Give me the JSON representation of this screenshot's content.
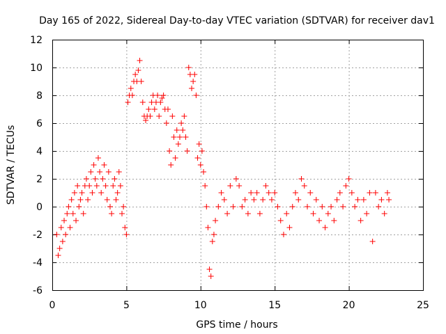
{
  "chart_data": {
    "type": "scatter",
    "title": "Day 165 of 2022, Sidereal Day-to-day VTEC variation (SDTVAR) for receiver dav1",
    "xlabel": "GPS time / hours",
    "ylabel": "SDTVAR / TECUs",
    "xlim": [
      0,
      25
    ],
    "ylim": [
      -6,
      12
    ],
    "xticks": [
      "0",
      "5",
      "10",
      "15",
      "20",
      "25"
    ],
    "yticks": [
      "-6",
      "-4",
      "-2",
      "0",
      "2",
      "4",
      "6",
      "8",
      "10",
      "12"
    ],
    "grid": true,
    "marker": "+",
    "color": "#ff0000",
    "series": [
      {
        "name": "dav1",
        "x": [
          0.3,
          0.4,
          0.5,
          0.6,
          0.7,
          0.8,
          0.9,
          1.0,
          1.1,
          1.2,
          1.3,
          1.4,
          1.5,
          1.6,
          1.7,
          1.8,
          1.9,
          2.0,
          2.1,
          2.2,
          2.3,
          2.4,
          2.5,
          2.6,
          2.7,
          2.8,
          2.9,
          3.0,
          3.1,
          3.2,
          3.3,
          3.4,
          3.5,
          3.6,
          3.7,
          3.8,
          3.9,
          4.0,
          4.1,
          4.2,
          4.3,
          4.4,
          4.5,
          4.6,
          4.7,
          4.8,
          4.9,
          5.0,
          5.1,
          5.2,
          5.3,
          5.4,
          5.5,
          5.6,
          5.7,
          5.8,
          5.9,
          6.0,
          6.1,
          6.2,
          6.3,
          6.4,
          6.5,
          6.6,
          6.7,
          6.8,
          6.9,
          7.0,
          7.1,
          7.2,
          7.3,
          7.4,
          7.5,
          7.6,
          7.7,
          7.8,
          7.9,
          8.0,
          8.1,
          8.2,
          8.3,
          8.4,
          8.5,
          8.6,
          8.7,
          8.8,
          8.9,
          9.0,
          9.1,
          9.2,
          9.3,
          9.4,
          9.5,
          9.6,
          9.7,
          9.8,
          9.9,
          10.0,
          10.1,
          10.2,
          10.3,
          10.4,
          10.5,
          10.6,
          10.7,
          10.8,
          10.9,
          11.0,
          11.2,
          11.4,
          11.6,
          11.8,
          12.0,
          12.2,
          12.4,
          12.6,
          12.8,
          13.0,
          13.2,
          13.4,
          13.6,
          13.8,
          14.0,
          14.2,
          14.4,
          14.6,
          14.8,
          15.0,
          15.2,
          15.4,
          15.6,
          15.8,
          16.0,
          16.2,
          16.4,
          16.6,
          16.8,
          17.0,
          17.2,
          17.4,
          17.6,
          17.8,
          18.0,
          18.2,
          18.4,
          18.6,
          18.8,
          19.0,
          19.2,
          19.4,
          19.6,
          19.8,
          20.0,
          20.2,
          20.4,
          20.6,
          20.8,
          21.0,
          21.2,
          21.4,
          21.6,
          21.8,
          22.0,
          22.2,
          22.4,
          22.6,
          22.7
        ],
        "y": [
          -2.0,
          -3.5,
          -3.0,
          -1.5,
          -2.5,
          -1.0,
          -2.0,
          -0.5,
          0.0,
          -1.5,
          0.5,
          -0.5,
          1.0,
          -1.0,
          1.5,
          0.0,
          0.5,
          1.0,
          -0.5,
          1.5,
          2.0,
          0.5,
          1.5,
          2.5,
          1.0,
          3.0,
          2.0,
          1.5,
          3.5,
          2.5,
          1.0,
          2.0,
          3.0,
          1.5,
          0.5,
          2.5,
          0.0,
          -0.5,
          1.5,
          2.0,
          0.5,
          1.0,
          2.5,
          1.5,
          -0.5,
          0.0,
          -1.5,
          -2.0,
          7.5,
          8.0,
          8.5,
          8.0,
          9.0,
          9.5,
          9.0,
          9.8,
          10.5,
          9.0,
          7.5,
          6.5,
          6.2,
          6.5,
          7.0,
          6.5,
          7.5,
          8.0,
          7.0,
          7.5,
          8.0,
          6.5,
          7.5,
          7.8,
          8.0,
          7.0,
          6.0,
          7.0,
          4.0,
          3.0,
          6.5,
          5.0,
          3.5,
          5.5,
          4.5,
          5.0,
          6.0,
          5.5,
          6.5,
          5.0,
          4.0,
          10.0,
          9.5,
          8.5,
          9.0,
          9.5,
          8.0,
          3.5,
          4.5,
          3.0,
          4.0,
          2.5,
          1.5,
          0.0,
          -1.5,
          -4.5,
          -5.0,
          -2.5,
          -2.0,
          -1.0,
          0.0,
          1.0,
          0.5,
          -0.5,
          1.5,
          0.0,
          2.0,
          1.5,
          0.0,
          0.5,
          -0.5,
          1.0,
          0.5,
          1.0,
          -0.5,
          0.5,
          1.5,
          1.0,
          0.5,
          1.0,
          0.0,
          -1.0,
          -2.0,
          -0.5,
          -1.5,
          0.0,
          1.0,
          0.5,
          2.0,
          1.5,
          0.0,
          1.0,
          -0.5,
          0.5,
          -1.0,
          0.0,
          -1.5,
          -0.5,
          0.0,
          -1.0,
          0.5,
          1.0,
          0.0,
          1.5,
          2.0,
          1.0,
          0.0,
          0.5,
          -1.0,
          0.5,
          -0.5,
          1.0,
          -2.5,
          1.0,
          0.0,
          0.5,
          -0.5,
          1.0,
          0.5
        ]
      }
    ]
  }
}
